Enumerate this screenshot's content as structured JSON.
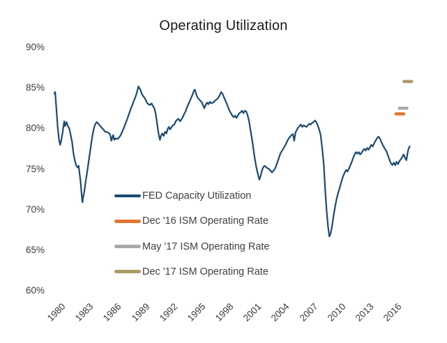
{
  "title": "Operating Utilization",
  "colors": {
    "fed_line": "#1B4A72",
    "dec16": "#E2762D",
    "may17": "#A9A9A9",
    "dec17": "#AC9A64",
    "title_text": "#1a1a1a",
    "axis_text": "#3a3a3a",
    "legend_text": "#404040"
  },
  "chart_data": {
    "type": "line",
    "title": "Operating Utilization",
    "grid": false,
    "legend_position": "inside-lower-left",
    "y_axis": {
      "range": [
        60,
        90
      ],
      "tick_values": [
        90,
        85,
        80,
        75,
        70,
        65,
        60
      ],
      "tick_labels": [
        "90%",
        "85%",
        "80%",
        "75%",
        "70%",
        "65%",
        "60%"
      ]
    },
    "x_axis": {
      "range": [
        1980,
        2018.4
      ],
      "tick_values": [
        1980,
        1983,
        1986,
        1989,
        1992,
        1995,
        1998,
        2001,
        2004,
        2007,
        2010,
        2013,
        2016
      ],
      "tick_labels": [
        "1980",
        "1983",
        "1986",
        "1989",
        "1992",
        "1995",
        "1998",
        "2001",
        "2004",
        "2007",
        "2010",
        "2013",
        "2016"
      ]
    },
    "legend": {
      "entries": [
        {
          "label": "FED Capacity Utilization",
          "color": "#1B4A72",
          "swatch": "line"
        },
        {
          "label": "Dec '16 ISM Operating Rate",
          "color": "#E2762D",
          "swatch": "dash"
        },
        {
          "label": "May '17 ISM Operating Rate",
          "color": "#A9A9A9",
          "swatch": "dash"
        },
        {
          "label": "Dec '17 ISM Operating Rate",
          "color": "#AC9A64",
          "swatch": "dash"
        }
      ]
    },
    "markers": [
      {
        "name": "Dec '16 ISM Operating Rate",
        "color": "#E2762D",
        "x_year": 2017.0,
        "value": 81.8
      },
      {
        "name": "May '17 ISM Operating Rate",
        "color": "#A9A9A9",
        "x_year": 2017.35,
        "value": 82.5
      },
      {
        "name": "Dec '17 ISM Operating Rate",
        "color": "#AC9A64",
        "x_year": 2017.85,
        "value": 85.8
      }
    ],
    "series": [
      {
        "name": "FED Capacity Utilization",
        "color": "#1B4A72",
        "points": [
          [
            1980.0,
            84.3
          ],
          [
            1980.08,
            84.5
          ],
          [
            1980.2,
            82.6
          ],
          [
            1980.35,
            80.2
          ],
          [
            1980.5,
            78.6
          ],
          [
            1980.62,
            78.0
          ],
          [
            1980.75,
            78.6
          ],
          [
            1980.9,
            79.7
          ],
          [
            1981.05,
            80.9
          ],
          [
            1981.15,
            80.3
          ],
          [
            1981.3,
            80.8
          ],
          [
            1981.45,
            80.3
          ],
          [
            1981.6,
            80.0
          ],
          [
            1981.75,
            79.2
          ],
          [
            1981.9,
            78.3
          ],
          [
            1982.05,
            76.9
          ],
          [
            1982.2,
            76.0
          ],
          [
            1982.35,
            75.4
          ],
          [
            1982.5,
            75.2
          ],
          [
            1982.6,
            75.4
          ],
          [
            1982.7,
            74.4
          ],
          [
            1982.8,
            73.5
          ],
          [
            1982.92,
            71.8
          ],
          [
            1983.0,
            70.9
          ],
          [
            1983.08,
            71.5
          ],
          [
            1983.2,
            72.2
          ],
          [
            1983.35,
            73.5
          ],
          [
            1983.5,
            74.6
          ],
          [
            1983.65,
            75.8
          ],
          [
            1983.8,
            77.0
          ],
          [
            1983.95,
            78.2
          ],
          [
            1984.1,
            79.3
          ],
          [
            1984.25,
            80.1
          ],
          [
            1984.4,
            80.6
          ],
          [
            1984.55,
            80.8
          ],
          [
            1984.7,
            80.6
          ],
          [
            1984.85,
            80.4
          ],
          [
            1985.0,
            80.2
          ],
          [
            1985.15,
            80.0
          ],
          [
            1985.3,
            79.8
          ],
          [
            1985.45,
            79.6
          ],
          [
            1985.6,
            79.6
          ],
          [
            1985.75,
            79.5
          ],
          [
            1985.9,
            79.4
          ],
          [
            1986.0,
            79.1
          ],
          [
            1986.1,
            78.5
          ],
          [
            1986.2,
            78.9
          ],
          [
            1986.3,
            79.2
          ],
          [
            1986.4,
            78.6
          ],
          [
            1986.55,
            78.8
          ],
          [
            1986.7,
            78.7
          ],
          [
            1986.85,
            78.8
          ],
          [
            1987.0,
            79.0
          ],
          [
            1987.15,
            79.3
          ],
          [
            1987.3,
            79.7
          ],
          [
            1987.45,
            80.1
          ],
          [
            1987.6,
            80.6
          ],
          [
            1987.75,
            81.0
          ],
          [
            1987.9,
            81.5
          ],
          [
            1988.05,
            82.0
          ],
          [
            1988.2,
            82.5
          ],
          [
            1988.35,
            82.9
          ],
          [
            1988.5,
            83.4
          ],
          [
            1988.65,
            83.8
          ],
          [
            1988.8,
            84.3
          ],
          [
            1988.92,
            84.8
          ],
          [
            1989.0,
            85.2
          ],
          [
            1989.1,
            85.0
          ],
          [
            1989.2,
            84.8
          ],
          [
            1989.35,
            84.3
          ],
          [
            1989.5,
            84.0
          ],
          [
            1989.65,
            83.8
          ],
          [
            1989.8,
            83.5
          ],
          [
            1989.95,
            83.1
          ],
          [
            1990.1,
            83.0
          ],
          [
            1990.25,
            82.9
          ],
          [
            1990.4,
            83.1
          ],
          [
            1990.55,
            82.8
          ],
          [
            1990.7,
            82.5
          ],
          [
            1990.85,
            81.8
          ],
          [
            1991.0,
            80.6
          ],
          [
            1991.15,
            79.4
          ],
          [
            1991.3,
            78.6
          ],
          [
            1991.42,
            79.1
          ],
          [
            1991.55,
            79.4
          ],
          [
            1991.7,
            79.1
          ],
          [
            1991.85,
            79.6
          ],
          [
            1992.0,
            79.4
          ],
          [
            1992.12,
            79.9
          ],
          [
            1992.25,
            80.2
          ],
          [
            1992.4,
            79.9
          ],
          [
            1992.55,
            80.2
          ],
          [
            1992.7,
            80.4
          ],
          [
            1992.85,
            80.5
          ],
          [
            1993.0,
            80.9
          ],
          [
            1993.15,
            81.1
          ],
          [
            1993.3,
            81.2
          ],
          [
            1993.45,
            80.9
          ],
          [
            1993.6,
            81.1
          ],
          [
            1993.75,
            81.4
          ],
          [
            1993.9,
            81.8
          ],
          [
            1994.05,
            82.1
          ],
          [
            1994.2,
            82.6
          ],
          [
            1994.35,
            83.0
          ],
          [
            1994.5,
            83.4
          ],
          [
            1994.65,
            83.8
          ],
          [
            1994.8,
            84.2
          ],
          [
            1994.95,
            84.7
          ],
          [
            1995.05,
            84.8
          ],
          [
            1995.2,
            84.2
          ],
          [
            1995.35,
            83.8
          ],
          [
            1995.5,
            83.6
          ],
          [
            1995.65,
            83.4
          ],
          [
            1995.8,
            83.2
          ],
          [
            1995.95,
            82.8
          ],
          [
            1996.05,
            82.5
          ],
          [
            1996.2,
            82.9
          ],
          [
            1996.35,
            83.2
          ],
          [
            1996.5,
            83.0
          ],
          [
            1996.65,
            83.3
          ],
          [
            1996.8,
            83.1
          ],
          [
            1996.95,
            83.2
          ],
          [
            1997.1,
            83.3
          ],
          [
            1997.25,
            83.5
          ],
          [
            1997.4,
            83.6
          ],
          [
            1997.55,
            83.8
          ],
          [
            1997.7,
            84.1
          ],
          [
            1997.85,
            84.5
          ],
          [
            1998.0,
            84.3
          ],
          [
            1998.15,
            83.9
          ],
          [
            1998.3,
            83.5
          ],
          [
            1998.45,
            83.1
          ],
          [
            1998.6,
            82.6
          ],
          [
            1998.75,
            82.2
          ],
          [
            1998.9,
            81.9
          ],
          [
            1999.05,
            81.6
          ],
          [
            1999.2,
            81.4
          ],
          [
            1999.35,
            81.6
          ],
          [
            1999.5,
            81.3
          ],
          [
            1999.65,
            81.6
          ],
          [
            1999.8,
            81.9
          ],
          [
            1999.95,
            82.0
          ],
          [
            2000.1,
            82.2
          ],
          [
            2000.25,
            81.9
          ],
          [
            2000.4,
            82.2
          ],
          [
            2000.55,
            82.1
          ],
          [
            2000.7,
            81.6
          ],
          [
            2000.85,
            80.9
          ],
          [
            2001.0,
            79.8
          ],
          [
            2001.15,
            78.8
          ],
          [
            2001.3,
            77.6
          ],
          [
            2001.45,
            76.4
          ],
          [
            2001.6,
            75.4
          ],
          [
            2001.75,
            74.6
          ],
          [
            2001.95,
            73.7
          ],
          [
            2002.1,
            74.2
          ],
          [
            2002.25,
            74.9
          ],
          [
            2002.4,
            75.3
          ],
          [
            2002.55,
            75.4
          ],
          [
            2002.7,
            75.2
          ],
          [
            2002.85,
            75.1
          ],
          [
            2003.0,
            75.0
          ],
          [
            2003.15,
            74.8
          ],
          [
            2003.3,
            74.6
          ],
          [
            2003.45,
            74.8
          ],
          [
            2003.6,
            75.0
          ],
          [
            2003.75,
            75.4
          ],
          [
            2003.9,
            75.9
          ],
          [
            2004.05,
            76.4
          ],
          [
            2004.2,
            76.9
          ],
          [
            2004.35,
            77.2
          ],
          [
            2004.5,
            77.5
          ],
          [
            2004.65,
            77.8
          ],
          [
            2004.8,
            78.1
          ],
          [
            2004.95,
            78.5
          ],
          [
            2005.1,
            78.8
          ],
          [
            2005.25,
            79.0
          ],
          [
            2005.4,
            79.2
          ],
          [
            2005.55,
            79.3
          ],
          [
            2005.68,
            78.5
          ],
          [
            2005.82,
            79.5
          ],
          [
            2005.95,
            79.8
          ],
          [
            2006.1,
            80.1
          ],
          [
            2006.25,
            80.3
          ],
          [
            2006.4,
            80.5
          ],
          [
            2006.55,
            80.2
          ],
          [
            2006.7,
            80.4
          ],
          [
            2006.85,
            80.3
          ],
          [
            2007.0,
            80.2
          ],
          [
            2007.15,
            80.4
          ],
          [
            2007.3,
            80.6
          ],
          [
            2007.45,
            80.5
          ],
          [
            2007.6,
            80.7
          ],
          [
            2007.75,
            80.8
          ],
          [
            2007.9,
            81.0
          ],
          [
            2008.05,
            80.8
          ],
          [
            2008.2,
            80.4
          ],
          [
            2008.35,
            79.9
          ],
          [
            2008.5,
            79.3
          ],
          [
            2008.62,
            78.2
          ],
          [
            2008.72,
            77.1
          ],
          [
            2008.85,
            75.6
          ],
          [
            2009.0,
            72.5
          ],
          [
            2009.15,
            70.0
          ],
          [
            2009.3,
            68.0
          ],
          [
            2009.45,
            66.7
          ],
          [
            2009.6,
            67.1
          ],
          [
            2009.75,
            68.1
          ],
          [
            2009.9,
            69.3
          ],
          [
            2010.05,
            70.3
          ],
          [
            2010.2,
            71.2
          ],
          [
            2010.35,
            71.9
          ],
          [
            2010.5,
            72.5
          ],
          [
            2010.65,
            73.1
          ],
          [
            2010.8,
            73.7
          ],
          [
            2010.95,
            74.2
          ],
          [
            2011.1,
            74.6
          ],
          [
            2011.25,
            74.9
          ],
          [
            2011.4,
            74.7
          ],
          [
            2011.55,
            75.1
          ],
          [
            2011.7,
            75.5
          ],
          [
            2011.85,
            75.9
          ],
          [
            2012.0,
            76.4
          ],
          [
            2012.15,
            76.8
          ],
          [
            2012.3,
            77.1
          ],
          [
            2012.45,
            76.9
          ],
          [
            2012.6,
            77.1
          ],
          [
            2012.75,
            76.8
          ],
          [
            2012.9,
            77.0
          ],
          [
            2013.05,
            77.3
          ],
          [
            2013.2,
            77.5
          ],
          [
            2013.35,
            77.3
          ],
          [
            2013.5,
            77.6
          ],
          [
            2013.65,
            77.4
          ],
          [
            2013.8,
            77.7
          ],
          [
            2013.95,
            78.0
          ],
          [
            2014.1,
            77.8
          ],
          [
            2014.25,
            78.2
          ],
          [
            2014.4,
            78.5
          ],
          [
            2014.55,
            78.8
          ],
          [
            2014.7,
            79.0
          ],
          [
            2014.85,
            78.8
          ],
          [
            2015.0,
            78.4
          ],
          [
            2015.15,
            78.0
          ],
          [
            2015.3,
            77.7
          ],
          [
            2015.45,
            77.4
          ],
          [
            2015.6,
            77.1
          ],
          [
            2015.75,
            76.6
          ],
          [
            2015.9,
            76.1
          ],
          [
            2016.05,
            75.7
          ],
          [
            2016.2,
            75.5
          ],
          [
            2016.35,
            75.8
          ],
          [
            2016.5,
            75.5
          ],
          [
            2016.65,
            75.9
          ],
          [
            2016.8,
            75.6
          ],
          [
            2016.95,
            76.0
          ],
          [
            2017.1,
            76.2
          ],
          [
            2017.25,
            76.5
          ],
          [
            2017.4,
            76.8
          ],
          [
            2017.55,
            76.4
          ],
          [
            2017.7,
            76.1
          ],
          [
            2017.8,
            76.8
          ],
          [
            2017.9,
            77.4
          ],
          [
            2018.0,
            77.7
          ],
          [
            2018.05,
            77.8
          ]
        ]
      }
    ]
  }
}
